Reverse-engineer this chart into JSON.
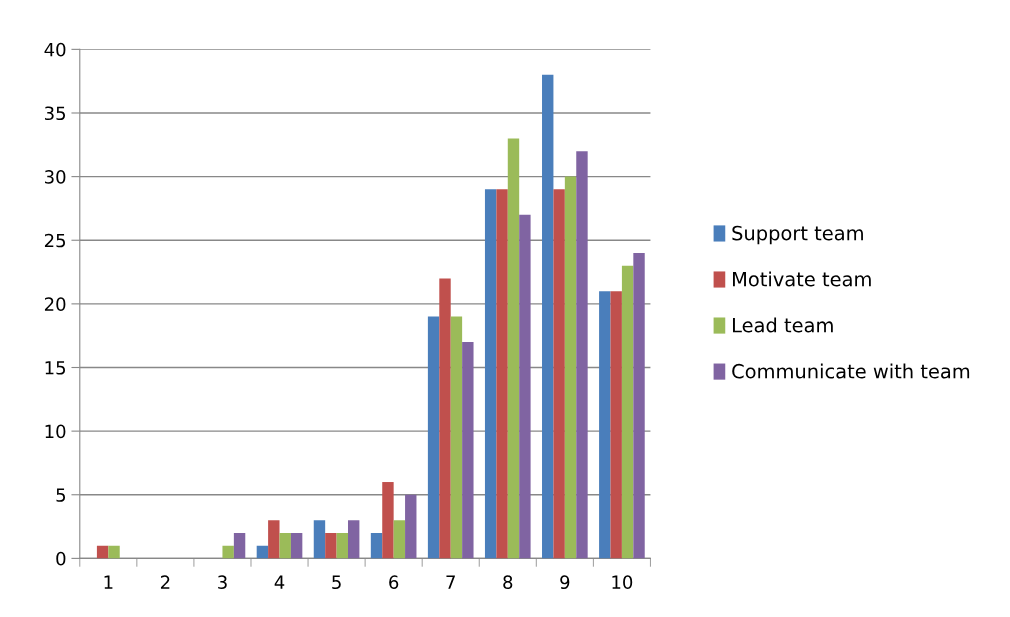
{
  "chart_data": {
    "type": "bar",
    "categories": [
      "1",
      "2",
      "3",
      "4",
      "5",
      "6",
      "7",
      "8",
      "9",
      "10"
    ],
    "series": [
      {
        "name": "Support team",
        "color": "#4a7ebb",
        "values": [
          0,
          0,
          0,
          1,
          3,
          2,
          19,
          29,
          38,
          21
        ]
      },
      {
        "name": "Motivate team",
        "color": "#c0504d",
        "values": [
          1,
          0,
          0,
          3,
          2,
          6,
          22,
          29,
          29,
          21
        ]
      },
      {
        "name": "Lead team",
        "color": "#9bbb59",
        "values": [
          1,
          0,
          1,
          2,
          2,
          3,
          19,
          33,
          30,
          23
        ]
      },
      {
        "name": "Communicate with team",
        "color": "#8064a2",
        "values": [
          0,
          0,
          2,
          2,
          3,
          5,
          17,
          27,
          32,
          24
        ]
      }
    ],
    "ylim": [
      0,
      40
    ],
    "yticks": [
      0,
      5,
      10,
      15,
      20,
      25,
      30,
      35,
      40
    ],
    "grid": "y",
    "legend": "right"
  }
}
